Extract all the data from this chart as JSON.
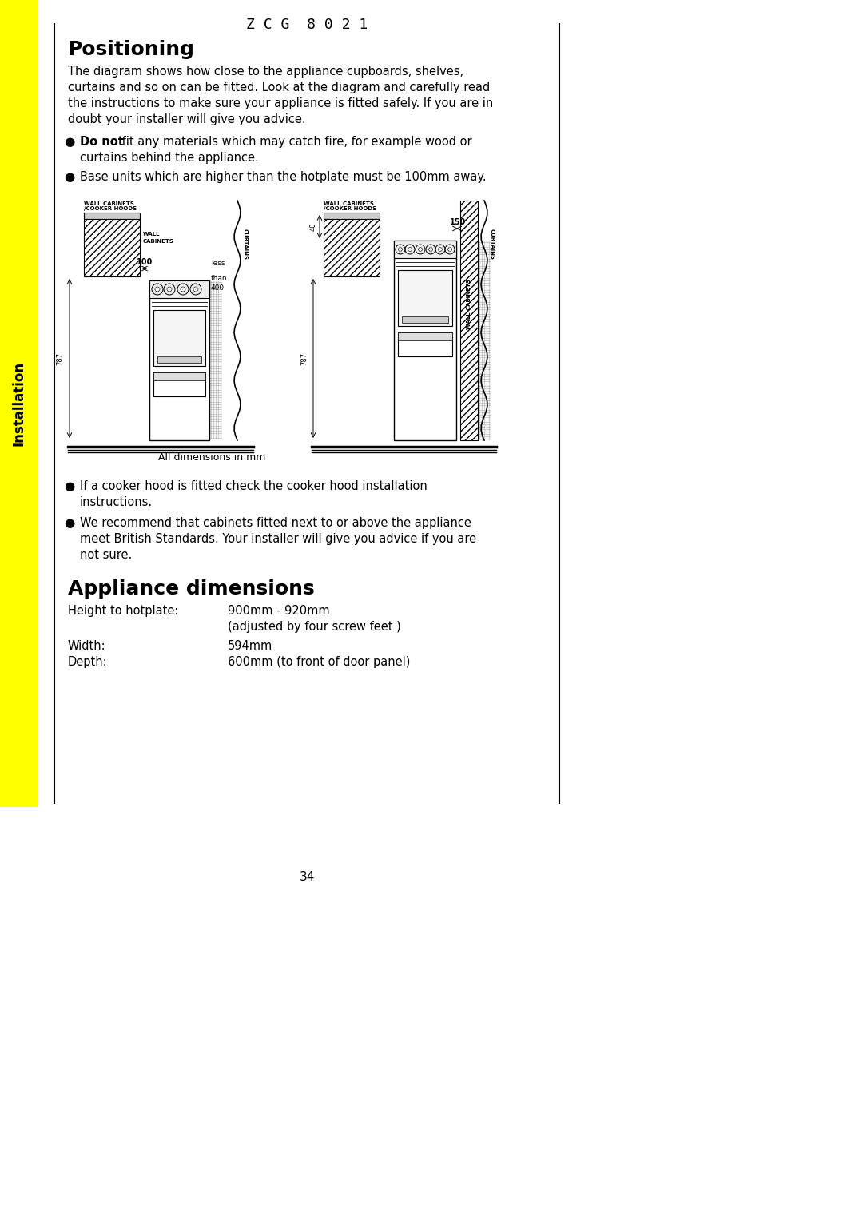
{
  "page_title": "Z C G  8 0 2 1",
  "section1_title": "Positioning",
  "section1_body1": "The diagram shows how close to the appliance cupboards, shelves,",
  "section1_body2": "curtains and so on can be fitted. Look at the diagram and carefully read",
  "section1_body3": "the instructions to make sure your appliance is fitted safely. If you are in",
  "section1_body4": "doubt your installer will give you advice.",
  "bullet1_bold": "Do not",
  "bullet1_rest": " fit any materials which may catch fire, for example wood or",
  "bullet1_cont": "curtains behind the appliance.",
  "bullet2": "Base units which are higher than the hotplate must be 100mm away.",
  "diagram_note": "All dimensions in mm",
  "bullet3a": "If a cooker hood is fitted check the cooker hood installation",
  "bullet3b": "instructions.",
  "bullet4a": "We recommend that cabinets fitted next to or above the appliance",
  "bullet4b": "meet British Standards. Your installer will give you advice if you are",
  "bullet4c": "not sure.",
  "section2_title": "Appliance dimensions",
  "dim_label1": "Height to hotplate:",
  "dim_value1a": "900mm - 920mm",
  "dim_value1b": "(adjusted by four screw feet )",
  "dim_label2": "Width:",
  "dim_value2": "594mm",
  "dim_label3": "Depth:",
  "dim_value3": "600mm (to front of door panel)",
  "page_number": "34",
  "sidebar_text": "Installation",
  "sidebar_color": "#FFFF00",
  "text_color": "#000000",
  "bg_color": "#FFFFFF"
}
